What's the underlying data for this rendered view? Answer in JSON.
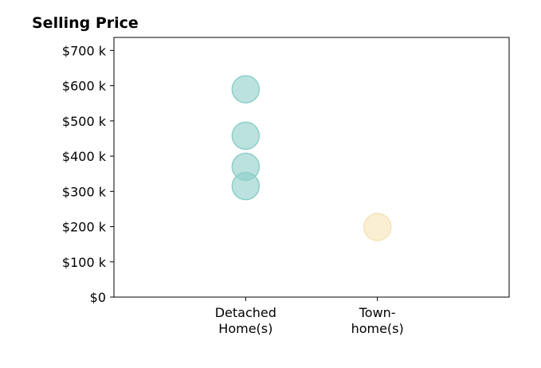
{
  "chart_data": {
    "type": "scatter",
    "title": "Selling Price",
    "xlabel": "",
    "ylabel": "",
    "categories": [
      [
        "Detached",
        "Home(s)"
      ],
      [
        "Town-",
        "home(s)"
      ]
    ],
    "y_ticks": [
      0,
      100,
      200,
      300,
      400,
      500,
      600,
      700
    ],
    "y_tick_labels": [
      "$0",
      "$100 k",
      "$200 k",
      "$300 k",
      "$400 k",
      "$500 k",
      "$600 k",
      "$700 k"
    ],
    "ylim": [
      0,
      737
    ],
    "xlim": [
      -1,
      2
    ],
    "grid": false,
    "series": [
      {
        "category_index": 0,
        "color": "#8ecfc8",
        "values": [
          590,
          458,
          370,
          315
        ]
      },
      {
        "category_index": 1,
        "color": "#f7e2b6",
        "values": [
          199
        ]
      }
    ]
  }
}
